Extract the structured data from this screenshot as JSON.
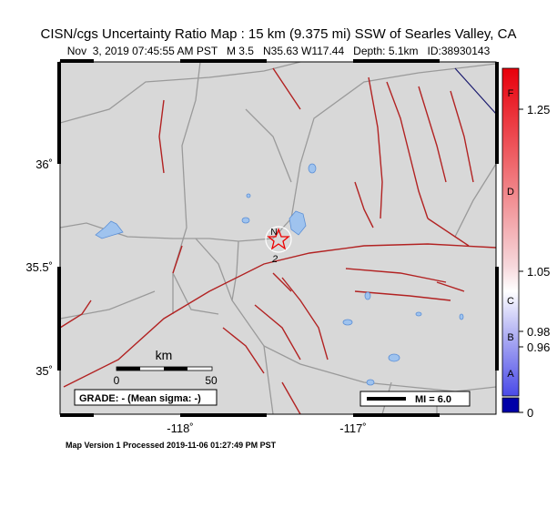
{
  "header": {
    "title": "CISN/cgs Uncertainty Ratio Map : 15 km (9.375 mi) SSW of Searles Valley, CA",
    "subtitle": "Nov  3, 2019 07:45:55 AM PST   M 3.5   N35.63 W117.44   Depth: 5.1km   ID:38930143"
  },
  "map": {
    "lat_labels": [
      "36˚",
      "35.5˚",
      "35˚"
    ],
    "lon_labels": [
      "-118˚",
      "-117˚"
    ],
    "station_code": "N",
    "station_label": "2",
    "scale": {
      "unit": "km",
      "ticks": [
        "0",
        "50"
      ]
    },
    "grade": "GRADE: - (Mean sigma: -)",
    "legend": "MI = 6.0"
  },
  "colorbar": {
    "letters": [
      "F",
      "D",
      "C",
      "B",
      "A"
    ],
    "ticks": [
      "1.25",
      "1.05",
      "0.98",
      "0.96",
      "0"
    ]
  },
  "footer": "Map Version 1 Processed 2019-11-06 01:27:49 PM PST"
}
